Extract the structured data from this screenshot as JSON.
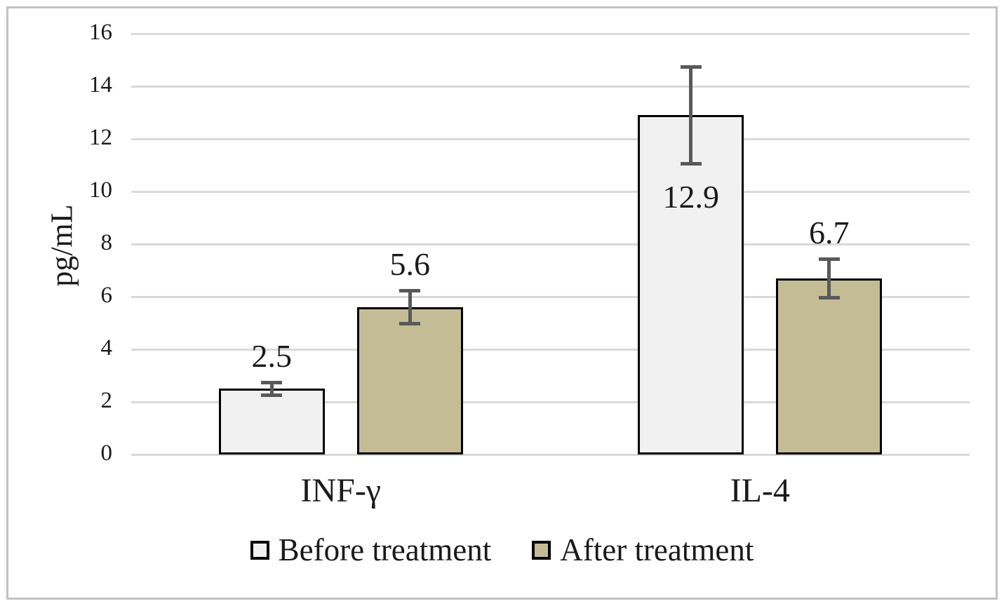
{
  "chart_data": {
    "type": "bar",
    "title": "",
    "xlabel": "",
    "ylabel": "pg/mL",
    "categories": [
      "INF-γ",
      "IL-4"
    ],
    "series": [
      {
        "name": "Before treatment",
        "color": "#f1f1f1",
        "values": [
          2.5,
          12.9
        ],
        "errors": [
          0.3,
          1.9
        ],
        "label_positions": [
          "above",
          "inside"
        ]
      },
      {
        "name": "After treatment",
        "color": "#c4bc95",
        "values": [
          5.6,
          6.7
        ],
        "errors": [
          0.7,
          0.8
        ],
        "label_positions": [
          "above",
          "above"
        ]
      }
    ],
    "data_labels": {
      "before": [
        "2.5",
        "12.9"
      ],
      "after": [
        "5.6",
        "6.7"
      ]
    },
    "ylim": [
      0,
      16
    ],
    "yticks": [
      0,
      2,
      4,
      6,
      8,
      10,
      12,
      14,
      16
    ],
    "grid": true,
    "legend_position": "bottom",
    "colors": {
      "bar_border": "#000000",
      "error_bar": "#595959",
      "gridline": "#d9d9d9",
      "frame_border": "#c2c2c2",
      "text": "#1a1a1a"
    }
  }
}
